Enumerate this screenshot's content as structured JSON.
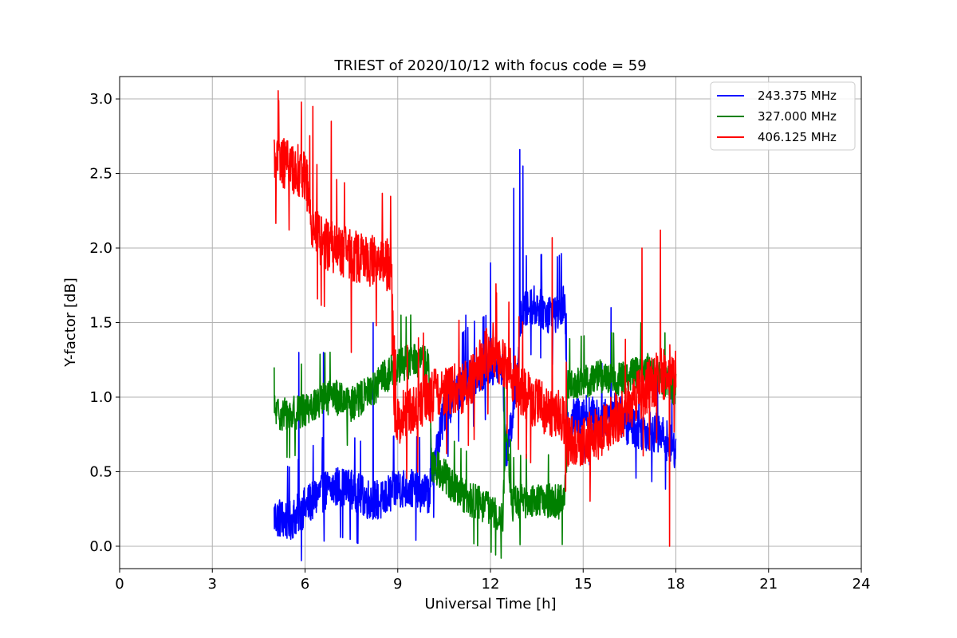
{
  "chart_data": {
    "type": "line",
    "title": "TRIEST of 2020/10/12 with focus code = 59",
    "xlabel": "Universal Time [h]",
    "ylabel": "Y-factor [dB]",
    "xlim": [
      0,
      24
    ],
    "ylim": [
      -0.15,
      3.15
    ],
    "xticks": [
      0,
      3,
      6,
      9,
      12,
      15,
      18,
      21,
      24
    ],
    "yticks": [
      0.0,
      0.5,
      1.0,
      1.5,
      2.0,
      2.5,
      3.0
    ],
    "ytick_labels": [
      "0.0",
      "0.5",
      "1.0",
      "1.5",
      "2.0",
      "2.5",
      "3.0"
    ],
    "grid": true,
    "legend_position": "top-right",
    "series": [
      {
        "name": "243.375 MHz",
        "color": "#0000ff",
        "x": [
          5.0,
          5.5,
          6.0,
          6.5,
          7.0,
          7.5,
          8.0,
          8.5,
          9.0,
          9.5,
          10.0,
          10.5,
          11.0,
          11.5,
          12.0,
          12.4,
          12.5,
          12.8,
          13.0,
          13.3,
          13.6,
          14.0,
          14.4,
          14.5,
          15.0,
          15.5,
          16.0,
          16.5,
          17.0,
          17.5,
          18.0
        ],
        "y": [
          0.2,
          0.17,
          0.26,
          0.36,
          0.4,
          0.38,
          0.32,
          0.3,
          0.4,
          0.38,
          0.35,
          0.9,
          1.05,
          1.15,
          1.2,
          1.2,
          0.6,
          1.0,
          1.55,
          1.62,
          1.6,
          1.55,
          1.62,
          0.82,
          0.9,
          0.85,
          0.92,
          0.8,
          0.78,
          0.75,
          0.65
        ],
        "noise": 0.14,
        "spikes": [
          [
            5.8,
            1.3
          ],
          [
            6.6,
            1.3
          ],
          [
            8.2,
            1.5
          ],
          [
            11.2,
            1.55
          ],
          [
            12.0,
            1.9
          ],
          [
            12.75,
            2.4
          ],
          [
            12.95,
            2.66
          ],
          [
            13.05,
            2.55
          ],
          [
            15.9,
            1.6
          ],
          [
            16.8,
            1.0
          ]
        ]
      },
      {
        "name": "327.000 MHz",
        "color": "#008000",
        "x": [
          5.0,
          5.5,
          6.0,
          6.5,
          7.0,
          7.5,
          8.0,
          8.5,
          9.0,
          9.5,
          10.0,
          10.1,
          10.5,
          11.0,
          11.5,
          12.0,
          12.4,
          12.5,
          12.7,
          13.0,
          13.5,
          14.0,
          14.4,
          14.5,
          15.0,
          15.5,
          16.0,
          16.5,
          17.0,
          17.5,
          18.0
        ],
        "y": [
          0.9,
          0.88,
          0.92,
          0.98,
          1.0,
          0.95,
          1.02,
          1.12,
          1.2,
          1.25,
          1.22,
          0.55,
          0.48,
          0.35,
          0.3,
          0.25,
          0.2,
          0.8,
          0.28,
          0.3,
          0.32,
          0.3,
          0.3,
          1.08,
          1.1,
          1.15,
          1.12,
          1.15,
          1.2,
          1.15,
          1.05
        ],
        "noise": 0.12,
        "spikes": [
          [
            5.0,
            1.2
          ],
          [
            9.1,
            1.55
          ],
          [
            10.6,
            0.55
          ],
          [
            12.45,
            1.1
          ]
        ]
      },
      {
        "name": "406.125 MHz",
        "color": "#ff0000",
        "x": [
          5.0,
          5.5,
          6.0,
          6.25,
          6.5,
          7.0,
          7.5,
          8.0,
          8.5,
          8.8,
          8.9,
          9.5,
          10.0,
          10.5,
          11.0,
          11.5,
          12.0,
          12.5,
          13.0,
          13.5,
          14.0,
          14.4,
          14.5,
          15.0,
          15.5,
          16.0,
          16.5,
          17.0,
          17.5,
          18.0
        ],
        "y": [
          2.6,
          2.55,
          2.5,
          2.15,
          2.05,
          2.0,
          1.95,
          1.92,
          1.9,
          1.88,
          0.85,
          0.9,
          1.0,
          1.05,
          1.05,
          1.15,
          1.35,
          1.2,
          1.05,
          0.95,
          0.9,
          0.85,
          0.7,
          0.72,
          0.75,
          0.85,
          0.95,
          1.05,
          1.15,
          1.2
        ],
        "noise": 0.18,
        "spikes": [
          [
            5.15,
            2.99
          ],
          [
            6.25,
            2.95
          ],
          [
            6.85,
            2.85
          ],
          [
            7.5,
            1.3
          ],
          [
            12.2,
            1.7
          ],
          [
            14.0,
            2.07
          ],
          [
            16.9,
            2.0
          ],
          [
            17.5,
            2.12
          ],
          [
            17.8,
            0.0
          ]
        ]
      }
    ]
  }
}
